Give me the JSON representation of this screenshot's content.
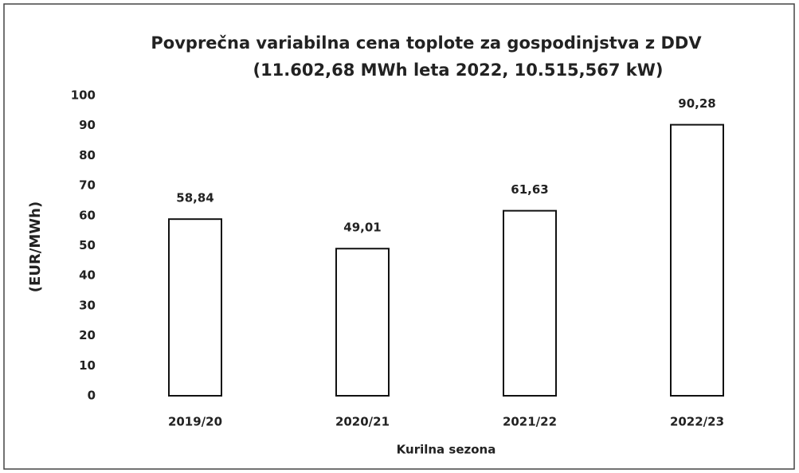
{
  "chart_data": {
    "type": "bar",
    "title": "Povprečna variabilna cena toplote za gospodinjstva z DDV",
    "subtitle": "(11.602,68 MWh leta 2022, 10.515,567 kW)",
    "x_label": "Kurilna sezona",
    "y_label": "(EUR/MWh)",
    "categories": [
      "2019/20",
      "2020/21",
      "2021/22",
      "2022/23"
    ],
    "values": [
      58.84,
      49.01,
      61.63,
      90.28
    ],
    "value_labels": [
      "58,84",
      "49,01",
      "61,63",
      "90,28"
    ],
    "color": "#ffffff",
    "ylim": [
      0,
      100
    ],
    "yticks": [
      0,
      10,
      20,
      30,
      40,
      50,
      60,
      70,
      80,
      90,
      100
    ],
    "grid": false
  }
}
